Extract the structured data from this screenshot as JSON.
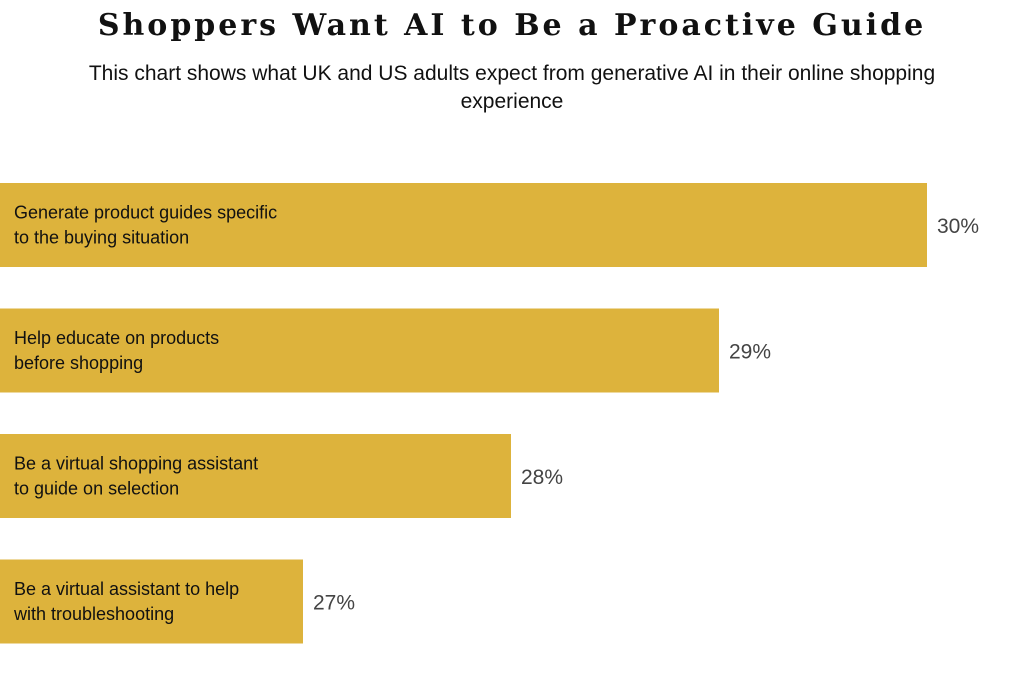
{
  "chart_data": {
    "type": "bar",
    "orientation": "horizontal",
    "title": "Shoppers Want AI to Be a Proactive Guide",
    "subtitle": "This chart shows what UK and US adults expect from generative AI in their online shopping experience",
    "categories": [
      [
        "Generate product guides specific",
        "to the buying situation"
      ],
      [
        "Help educate on products",
        "before shopping"
      ],
      [
        "Be a virtual shopping assistant",
        "to guide on selection"
      ],
      [
        "Be a virtual assistant to help",
        "with troubleshooting"
      ]
    ],
    "values": [
      30,
      29,
      28,
      27
    ],
    "value_labels": [
      "30%",
      "29%",
      "28%",
      "27%"
    ],
    "bar_color": "#DDB33C",
    "grid": false,
    "legend": "none"
  }
}
